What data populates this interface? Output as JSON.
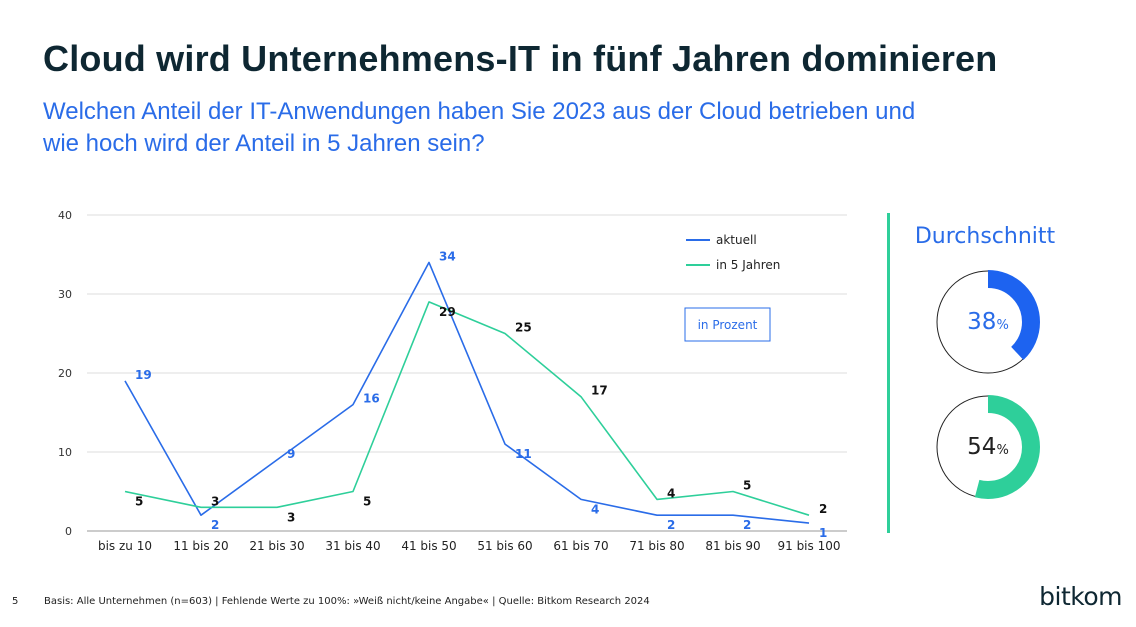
{
  "header": {
    "title": "Cloud wird Unternehmens-IT in fünf Jahren dominieren",
    "subtitle_line1": "Welchen Anteil der IT-Anwendungen haben Sie 2023 aus der Cloud betrieben und",
    "subtitle_line2": "wie hoch wird der Anteil in 5 Jahren sein?"
  },
  "chart_data": {
    "type": "line",
    "categories": [
      "bis zu 10",
      "11 bis 20",
      "21 bis 30",
      "31 bis 40",
      "41 bis 50",
      "51 bis 60",
      "61 bis 70",
      "71 bis 80",
      "81 bis 90",
      "91 bis 100"
    ],
    "series": [
      {
        "name": "aktuell",
        "values": [
          19,
          2,
          9,
          16,
          34,
          11,
          4,
          2,
          2,
          1
        ],
        "color": "#2a6ce8"
      },
      {
        "name": "in 5 Jahren",
        "values": [
          5,
          3,
          3,
          5,
          29,
          25,
          17,
          4,
          5,
          2
        ],
        "color": "#2ecf9a"
      }
    ],
    "ylim": [
      0,
      40
    ],
    "yticks": [
      "0",
      "10",
      "20",
      "30",
      "40"
    ],
    "grid": true,
    "legend": "top-right",
    "unit_box": "in Prozent",
    "label_colors": [
      "#2a6ce8",
      "#111111"
    ]
  },
  "summary": {
    "title": "Durchschnitt",
    "items": [
      {
        "value": 38,
        "display": "38",
        "unit": "%",
        "color": "#1d63f0",
        "text_color": "#2a6ce8"
      },
      {
        "value": 54,
        "display": "54",
        "unit": "%",
        "color": "#2ecf9a",
        "text_color": "#222222"
      }
    ]
  },
  "footer": {
    "page_number": "5",
    "note": "Basis: Alle Unternehmen (n=603) | Fehlende Werte zu 100%: »Weiß nicht/keine Angabe« | Quelle: Bitkom Research 2024",
    "logo": "bitkom"
  }
}
